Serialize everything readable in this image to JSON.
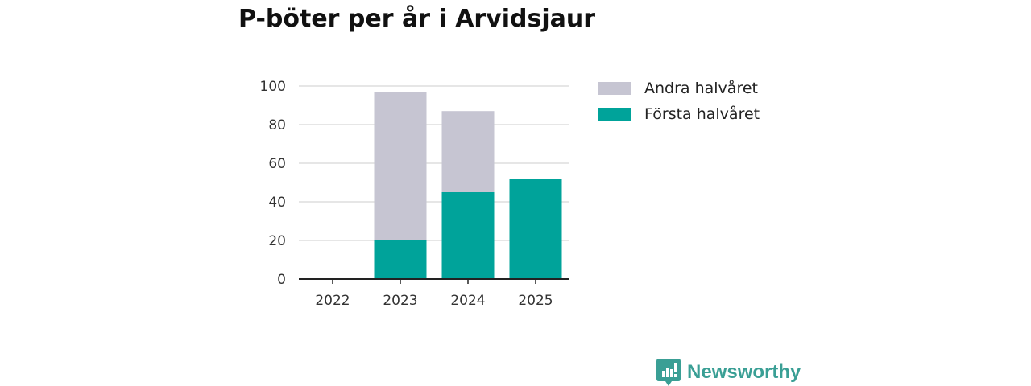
{
  "chart_data": {
    "type": "bar",
    "stacked": true,
    "title": "P-böter per år i Arvidsjaur",
    "xlabel": "",
    "ylabel": "",
    "categories": [
      "2022",
      "2023",
      "2024",
      "2025"
    ],
    "series": [
      {
        "name": "Första halvåret",
        "color": "#00A39A",
        "values": [
          0,
          20,
          45,
          52
        ]
      },
      {
        "name": "Andra halvåret",
        "color": "#C6C5D2",
        "values": [
          0,
          77,
          42,
          0
        ]
      }
    ],
    "ylim": [
      0,
      100
    ],
    "yticks": [
      0,
      20,
      40,
      60,
      80,
      100
    ],
    "grid": true,
    "legend_position": "right"
  },
  "legend": [
    {
      "label": "Andra halvåret",
      "color": "#C6C5D2"
    },
    {
      "label": "Första halvåret",
      "color": "#00A39A"
    }
  ],
  "brand": {
    "name": "Newsworthy",
    "color": "#3A9F95"
  }
}
